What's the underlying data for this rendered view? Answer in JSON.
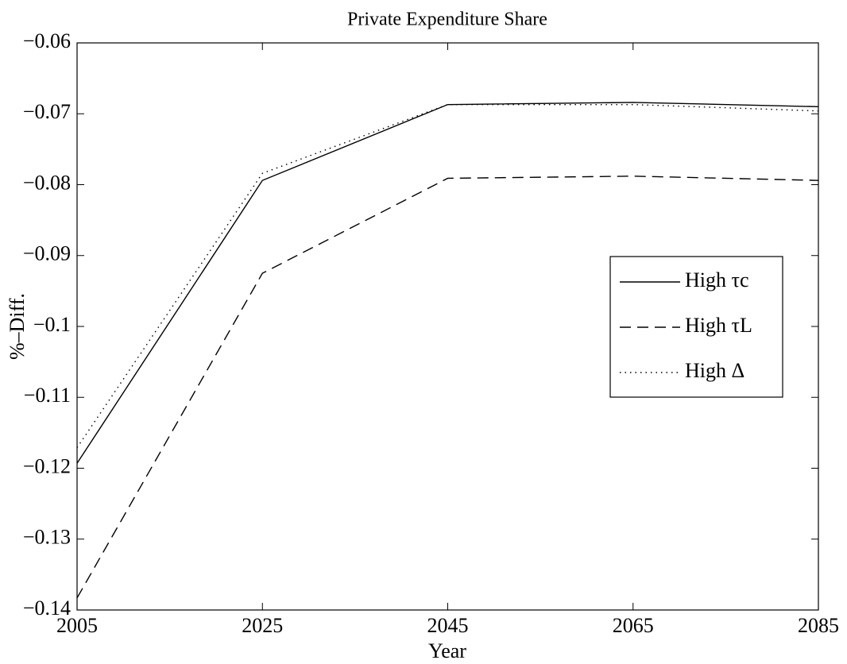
{
  "chart_data": {
    "type": "line",
    "title": "Private Expenditure Share",
    "x_label": "Year",
    "y_label": "%–Diff.",
    "x": [
      2005,
      2025,
      2045,
      2065,
      2085
    ],
    "series": [
      {
        "name": "High τc",
        "color": "#000000",
        "dash": "solid",
        "values": [
          -0.1193,
          -0.0794,
          -0.0687,
          -0.0684,
          -0.069
        ]
      },
      {
        "name": "High τL",
        "color": "#000000",
        "dash": "dashed",
        "values": [
          -0.1383,
          -0.0925,
          -0.0791,
          -0.0788,
          -0.0794
        ]
      },
      {
        "name": "High Δ",
        "color": "#000000",
        "dash": "dotted",
        "values": [
          -0.1171,
          -0.0784,
          -0.0687,
          -0.0687,
          -0.0696
        ]
      }
    ],
    "xlim": [
      2005,
      2085
    ],
    "xticks": [
      2005,
      2025,
      2045,
      2065,
      2085
    ],
    "ylim": [
      -0.14,
      -0.06
    ],
    "yticks": [
      {
        "value": -0.14,
        "label": "−0.14"
      },
      {
        "value": -0.13,
        "label": "−0.13"
      },
      {
        "value": -0.12,
        "label": "−0.12"
      },
      {
        "value": -0.11,
        "label": "−0.11"
      },
      {
        "value": -0.1,
        "label": "−0.1"
      },
      {
        "value": -0.09,
        "label": "−0.09"
      },
      {
        "value": -0.08,
        "label": "−0.08"
      },
      {
        "value": -0.07,
        "label": "−0.07"
      },
      {
        "value": -0.06,
        "label": "−0.06"
      }
    ],
    "grid": false,
    "legend": "right"
  }
}
